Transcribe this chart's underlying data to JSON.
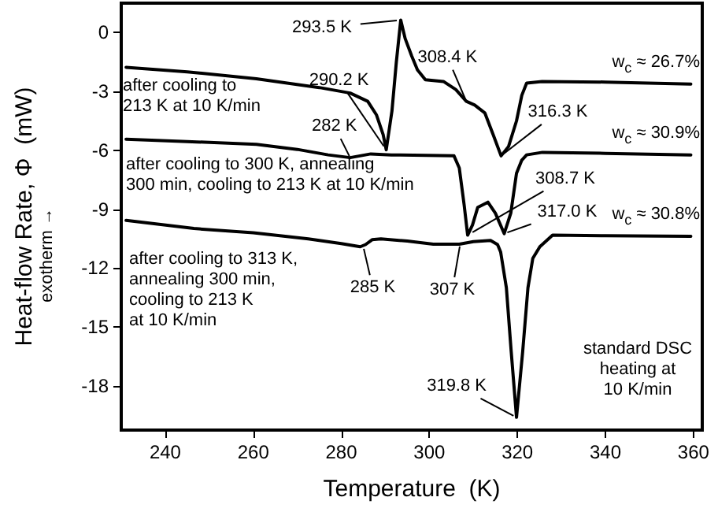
{
  "chart_data": {
    "type": "line",
    "xlabel": "Temperature  (K)",
    "ylabel": "Heat-flow Rate, Φ  (mW)",
    "xlim": [
      230,
      362
    ],
    "xticks": [
      240,
      260,
      280,
      300,
      320,
      340,
      360
    ],
    "ylim": [
      -20.25,
      1.5
    ],
    "yticks": [
      0,
      -3,
      -6,
      -9,
      -12,
      -15,
      -18
    ],
    "grid": false,
    "legend": false,
    "marker": "none",
    "line_style": "solid",
    "series": [
      {
        "name": "w$_{c}$ ≈ 26.7%",
        "color": "#000000",
        "x": [
          231.1,
          245,
          260.7,
          275,
          282,
          286,
          288,
          289.5,
          290.2,
          291.5,
          292.5,
          293.5,
          294.5,
          296,
          297.3,
          299.1,
          303.2,
          306,
          308.4,
          310.3,
          312.6,
          314.5,
          316.3,
          318,
          319.8,
          321,
          322.1,
          325.6,
          340,
          359.4
        ],
        "values": [
          -1.77,
          -2.0,
          -2.35,
          -2.8,
          -3.08,
          -3.5,
          -4.2,
          -5.2,
          -5.97,
          -4.0,
          -1.5,
          0.64,
          -0.3,
          -1.2,
          -1.9,
          -2.4,
          -2.49,
          -2.9,
          -3.5,
          -3.69,
          -4.09,
          -5.2,
          -6.28,
          -5.8,
          -4.5,
          -3.2,
          -2.57,
          -2.49,
          -2.52,
          -2.62
        ]
      },
      {
        "name": "w$_{c}$ ≈ 30.9%",
        "color": "#000000",
        "x": [
          231.1,
          245,
          260.7,
          270,
          277,
          282,
          286.7,
          291.4,
          305.6,
          306.8,
          307.9,
          308.7,
          309.8,
          311,
          313.3,
          315,
          317.0,
          318.5,
          319.8,
          321,
          322.1,
          325.7,
          340,
          359.4
        ],
        "values": [
          -5.43,
          -5.55,
          -5.69,
          -5.95,
          -6.23,
          -6.37,
          -6.18,
          -6.23,
          -6.28,
          -6.9,
          -8.77,
          -10.32,
          -9.8,
          -8.9,
          -8.64,
          -9.2,
          -10.24,
          -9.2,
          -7.17,
          -6.5,
          -6.23,
          -6.1,
          -6.15,
          -6.23
        ]
      },
      {
        "name": "w$_{c}$ ≈ 30.8%",
        "color": "#000000",
        "x": [
          231.1,
          246.5,
          260,
          272.5,
          280,
          284.3,
          285.5,
          287,
          289,
          295,
          300.9,
          306.8,
          310,
          313.9,
          315.5,
          316.2,
          317.5,
          318.6,
          319.8,
          321.2,
          322.4,
          323.5,
          325.1,
          328,
          340,
          359.4
        ],
        "values": [
          -9.57,
          -9.98,
          -10.2,
          -10.51,
          -10.75,
          -10.91,
          -10.8,
          -10.55,
          -10.51,
          -10.62,
          -10.78,
          -10.78,
          -10.65,
          -10.59,
          -10.8,
          -11.18,
          -13,
          -16.26,
          -19.6,
          -16.26,
          -13,
          -11.5,
          -10.91,
          -10.32,
          -10.35,
          -10.38
        ]
      }
    ],
    "annotations": [
      "after cooling to\n213 K at 10 K/min",
      "after cooling to 300 K, annealing\n300 min, cooling to 213 K at 10 K/min",
      "after cooling to 313 K,\nannealing 300 min,\ncooling to 213 K\nat 10 K/min",
      "standard DSC\nheating at\n10 K/min",
      "exotherm →",
      {
        "text": "293.5 K",
        "x": 293.5,
        "y": 0.64
      },
      {
        "text": "290.2 K",
        "x": 290.2,
        "y": -5.97
      },
      {
        "text": "308.4 K",
        "x": 308.4,
        "y": -3.5
      },
      {
        "text": "316.3 K",
        "x": 316.3,
        "y": -6.28
      },
      {
        "text": "282 K",
        "x": 282,
        "y": -6.37
      },
      {
        "text": "308.7 K",
        "x": 308.7,
        "y": -10.32
      },
      {
        "text": "317.0 K",
        "x": 317.0,
        "y": -10.24
      },
      {
        "text": "285 K",
        "x": 285,
        "y": -10.91
      },
      {
        "text": "307 K",
        "x": 307,
        "y": -10.78
      },
      {
        "text": "319.8 K",
        "x": 319.8,
        "y": -19.6
      }
    ]
  }
}
